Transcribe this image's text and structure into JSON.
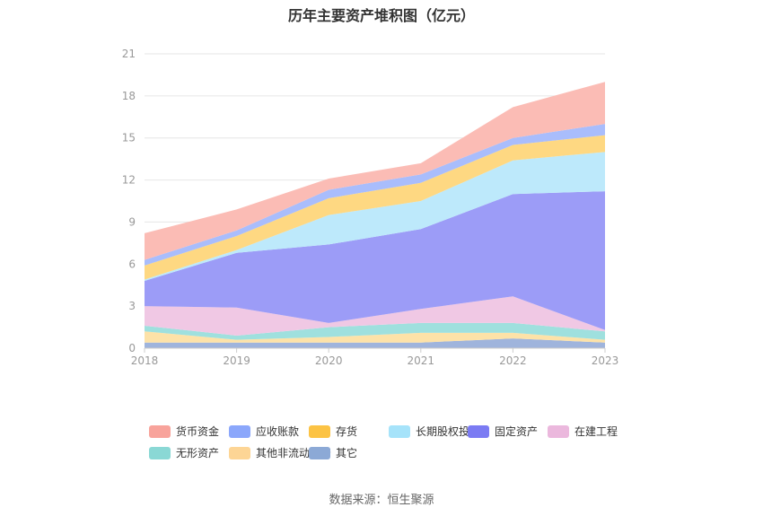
{
  "chart_data": {
    "type": "area",
    "stacked": true,
    "title": "历年主要资产堆积图（亿元）",
    "categories": [
      "2018",
      "2019",
      "2020",
      "2021",
      "2022",
      "2023"
    ],
    "ylim": [
      0,
      21
    ],
    "yticks": [
      0,
      3,
      6,
      9,
      12,
      15,
      18,
      21
    ],
    "grid": true,
    "legend_position": "bottom",
    "series": [
      {
        "name": "其它",
        "color": "#9fb4dc",
        "values": [
          0.4,
          0.4,
          0.4,
          0.4,
          0.7,
          0.4
        ]
      },
      {
        "name": "其他非流动资产",
        "color": "#fde2a8",
        "values": [
          0.8,
          0.2,
          0.4,
          0.7,
          0.4,
          0.2
        ]
      },
      {
        "name": "无形资产",
        "color": "#9fe0de",
        "values": [
          0.4,
          0.3,
          0.7,
          0.7,
          0.7,
          0.6
        ]
      },
      {
        "name": "在建工程",
        "color": "#f0c8e4",
        "values": [
          1.4,
          2.0,
          0.3,
          1.0,
          1.9,
          0.1
        ]
      },
      {
        "name": "固定资产",
        "color": "#9c9cf7",
        "values": [
          1.8,
          3.9,
          5.6,
          5.7,
          7.3,
          9.9
        ]
      },
      {
        "name": "长期股权投资",
        "color": "#bde9fb",
        "values": [
          0.1,
          0.2,
          2.1,
          2.0,
          2.4,
          2.8
        ]
      },
      {
        "name": "存货",
        "color": "#fed882",
        "values": [
          1.0,
          1.0,
          1.2,
          1.3,
          1.1,
          1.2
        ]
      },
      {
        "name": "应收账款",
        "color": "#a9bdfc",
        "values": [
          0.4,
          0.4,
          0.6,
          0.6,
          0.5,
          0.8
        ]
      },
      {
        "name": "货币资金",
        "color": "#fbbcb5",
        "values": [
          1.9,
          1.5,
          0.8,
          0.8,
          2.2,
          3.0
        ]
      }
    ],
    "legend_items": [
      {
        "name": "货币资金",
        "color": "#f8a39b"
      },
      {
        "name": "应收账款",
        "color": "#8ba7fb"
      },
      {
        "name": "存货",
        "color": "#fcc344"
      },
      {
        "name": "长期股权投资",
        "color": "#a6e3fa"
      },
      {
        "name": "固定资产",
        "color": "#7b7bf3"
      },
      {
        "name": "在建工程",
        "color": "#ebb8dd"
      },
      {
        "name": "无形资产",
        "color": "#8ad8d5"
      },
      {
        "name": "其他非流动资产",
        "color": "#fdd595"
      },
      {
        "name": "其它",
        "color": "#8ca9d6"
      }
    ],
    "source": "数据来源：恒生聚源"
  }
}
